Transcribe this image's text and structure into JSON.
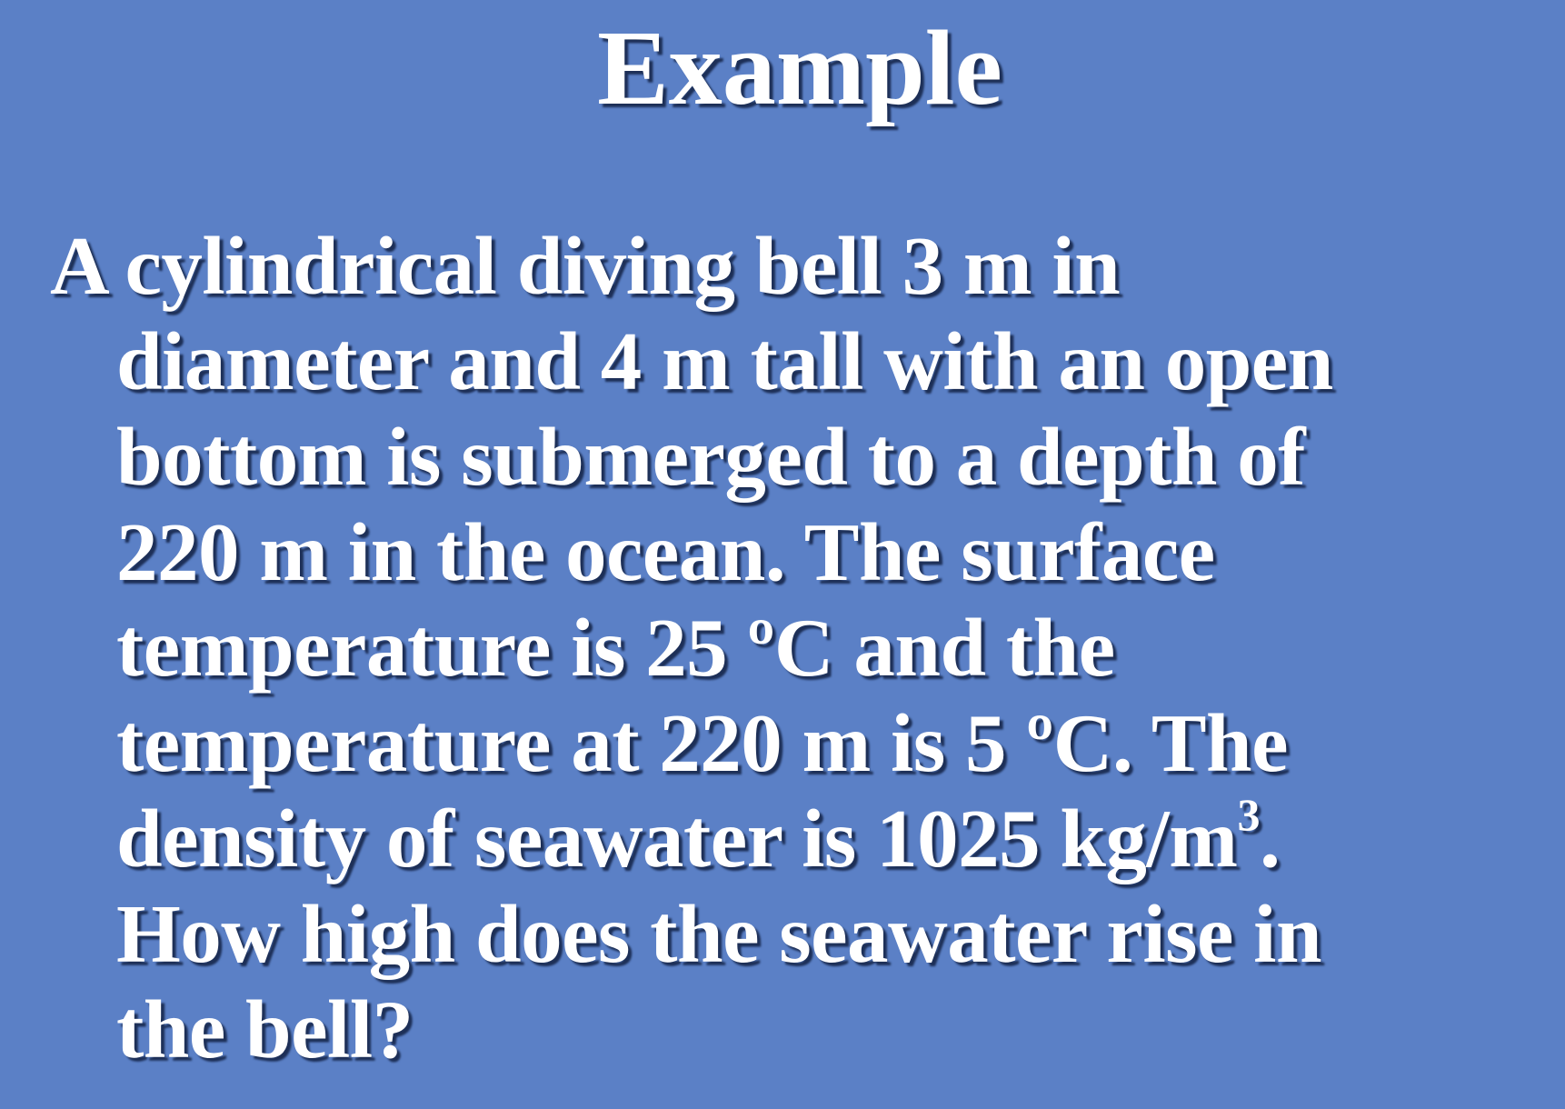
{
  "slide": {
    "title": "Example",
    "problem_lines": [
      "A cylindrical diving bell 3 m in",
      "diameter and 4 m tall with an open",
      "bottom is submerged to a depth of",
      "220 m in the ocean.  The surface",
      "temperature is 25 ºC and the",
      "temperature at 220 m is 5 ºC.  The",
      "density of seawater is 1025 kg/m",
      "3",
      ".",
      "How high does the seawater rise in",
      "the bell?"
    ]
  },
  "colors": {
    "background": "#5b80c6",
    "text": "#ffffff",
    "shadow": "#1d2f57"
  }
}
